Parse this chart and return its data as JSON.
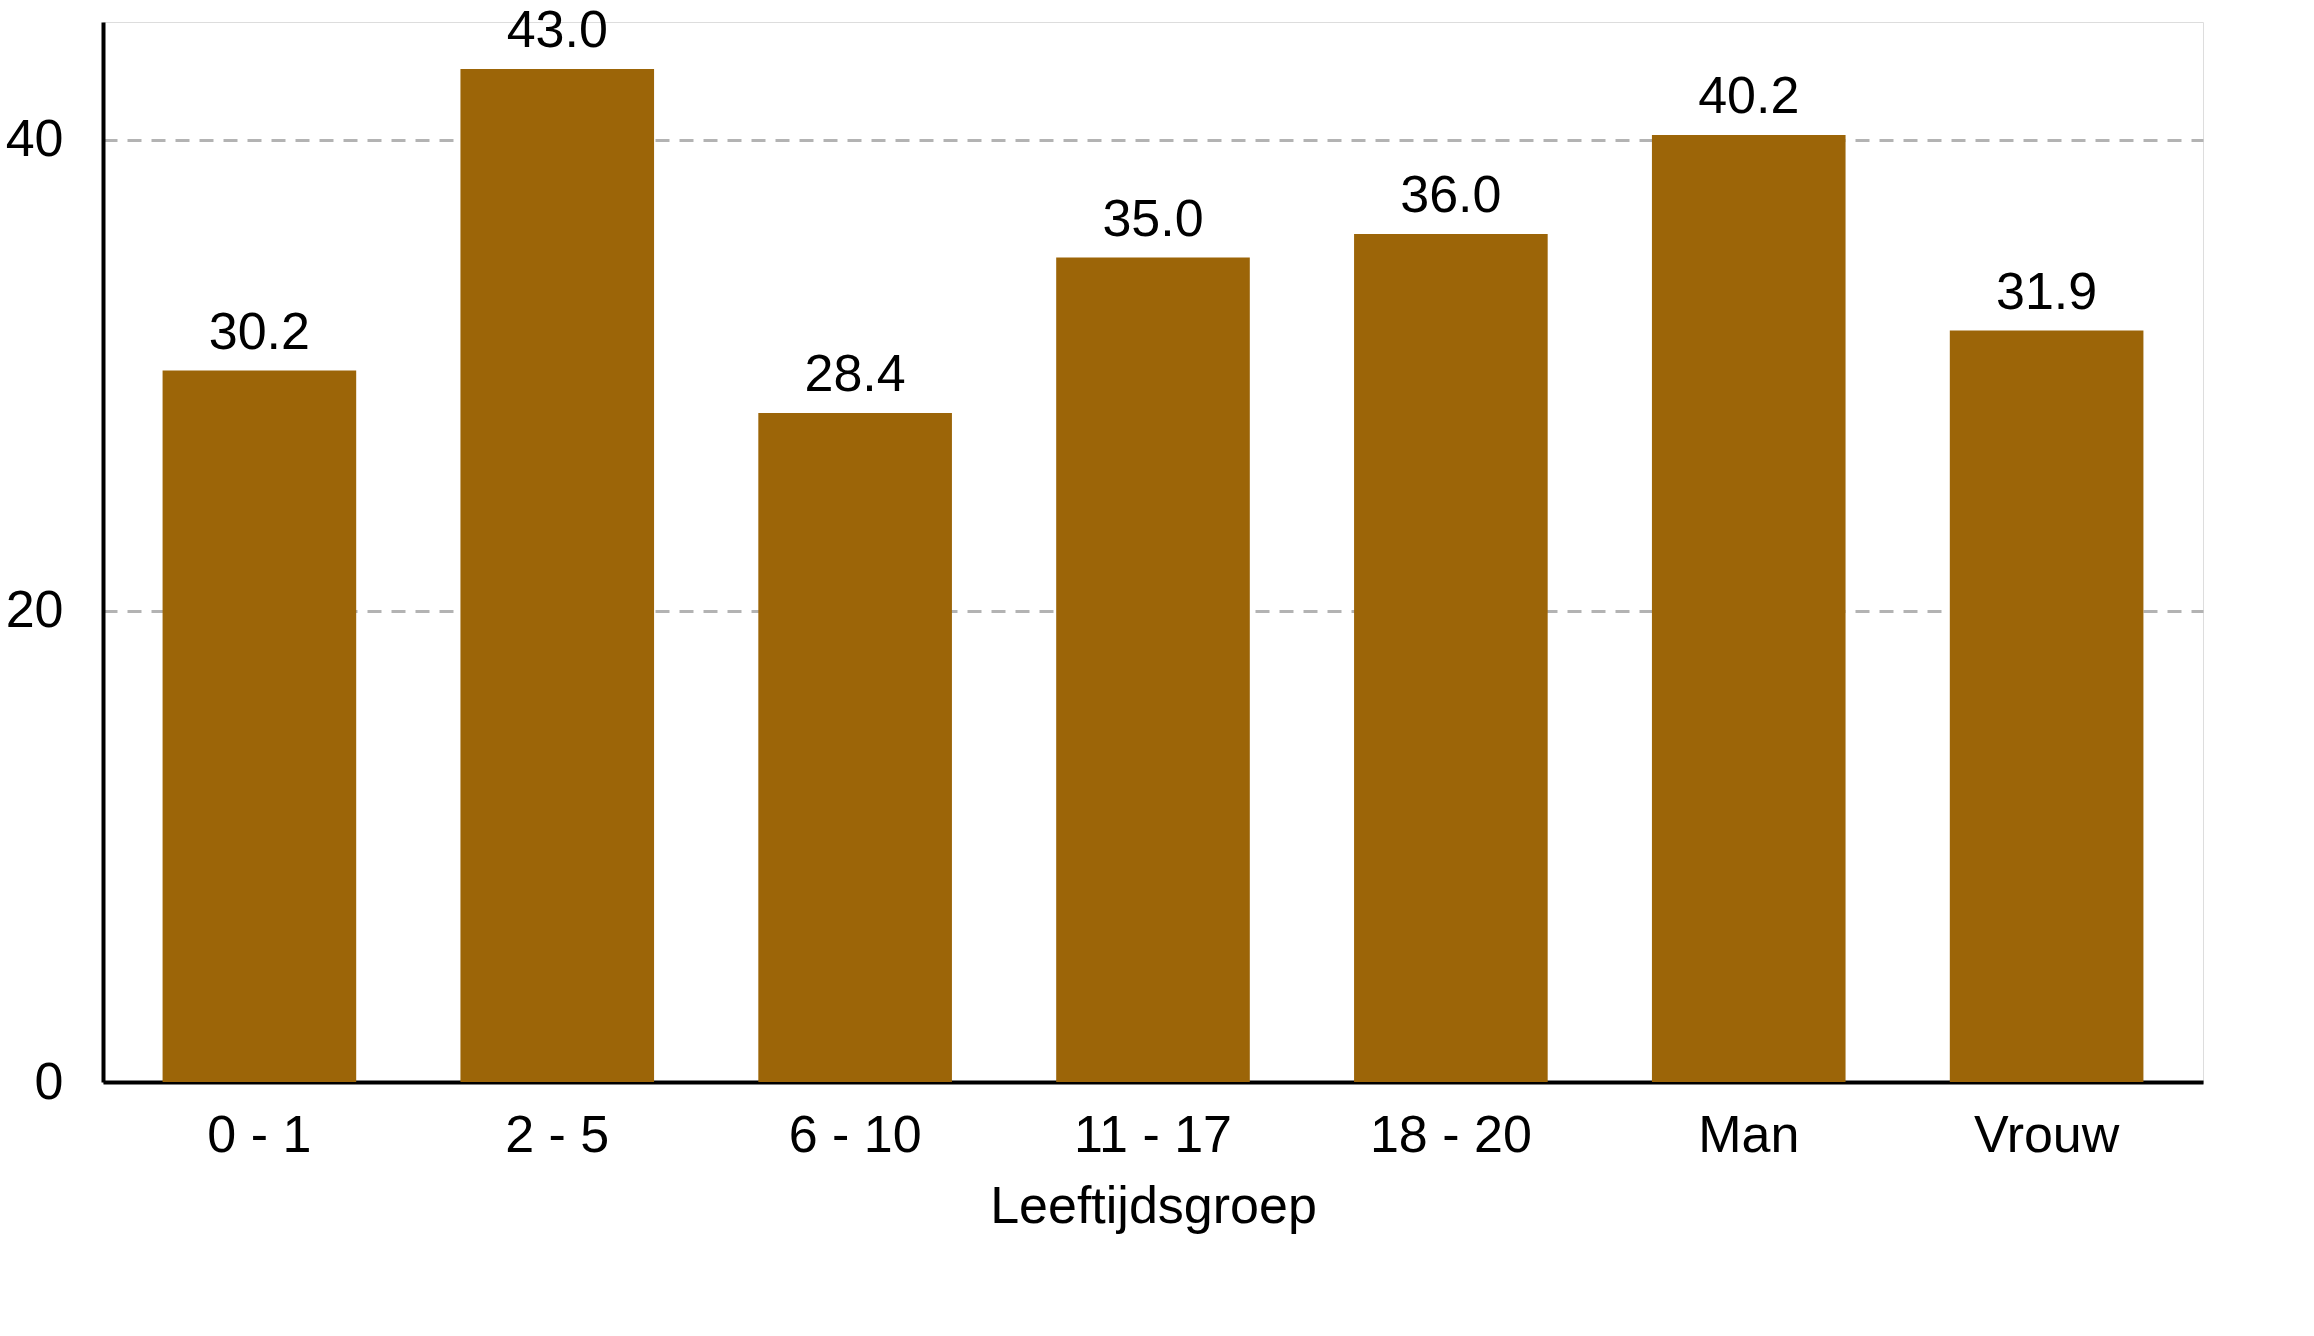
{
  "chart_data": {
    "type": "bar",
    "xlabel": "Leeftijdsgroep",
    "categories": [
      "0 - 1",
      "2 - 5",
      "6 - 10",
      "11 - 17",
      "18 - 20",
      "Man",
      "Vrouw"
    ],
    "values": [
      30.2,
      43.0,
      28.4,
      35.0,
      36.0,
      40.2,
      31.9
    ],
    "value_labels": [
      "30.2",
      "43.0",
      "28.4",
      "35.0",
      "36.0",
      "40.2",
      "31.9"
    ],
    "color": "#9c6508",
    "ylim": [
      0,
      45
    ],
    "yticks": [
      0,
      20,
      40
    ],
    "grid": "y"
  }
}
